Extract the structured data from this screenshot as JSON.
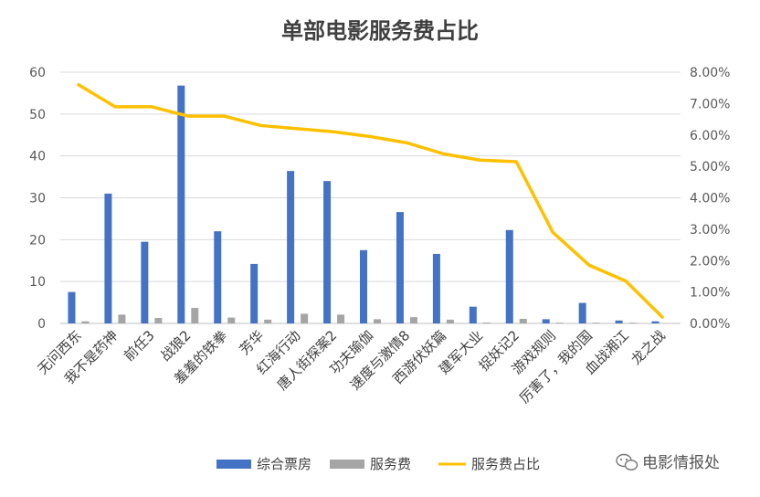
{
  "chart_data": {
    "type": "bar",
    "title": "单部电影服务费占比",
    "categories": [
      "无问西东",
      "我不是药神",
      "前任3",
      "战狼2",
      "羞羞的铁拳",
      "芳华",
      "红海行动",
      "唐人街探案2",
      "功夫瑜伽",
      "速度与激情8",
      "西游伏妖篇",
      "建军大业",
      "捉妖记2",
      "游戏规则",
      "厉害了，我的国",
      "血战湘江",
      "龙之战"
    ],
    "series": [
      {
        "name": "综合票房",
        "axis": "left",
        "kind": "bar",
        "color": "#4472C4",
        "values": [
          7.5,
          31,
          19.5,
          56.8,
          22,
          14.2,
          36.4,
          34,
          17.5,
          26.6,
          16.6,
          4,
          22.3,
          1,
          4.9,
          0.7,
          0.5
        ]
      },
      {
        "name": "服务费",
        "axis": "left",
        "kind": "bar",
        "color": "#A5A5A5",
        "values": [
          0.5,
          2.1,
          1.3,
          3.7,
          1.4,
          0.9,
          2.3,
          2.1,
          1,
          1.5,
          0.9,
          0.2,
          1.1,
          0.1,
          0.1,
          0.1,
          0
        ]
      },
      {
        "name": "服务费占比",
        "axis": "right",
        "kind": "line",
        "color": "#FFC000",
        "values": [
          7.6,
          6.9,
          6.9,
          6.6,
          6.6,
          6.3,
          6.2,
          6.1,
          5.95,
          5.75,
          5.4,
          5.2,
          5.15,
          2.9,
          1.85,
          1.35,
          0.2
        ]
      }
    ],
    "y_left": {
      "min": 0,
      "max": 60,
      "step": 10,
      "tick_labels": [
        "0",
        "10",
        "20",
        "30",
        "40",
        "50",
        "60"
      ]
    },
    "y_right": {
      "min": 0,
      "max": 8,
      "step": 1,
      "tick_labels": [
        "0.00%",
        "1.00%",
        "2.00%",
        "3.00%",
        "4.00%",
        "5.00%",
        "6.00%",
        "7.00%",
        "8.00%"
      ]
    },
    "grid": true,
    "legend": {
      "position": "bottom",
      "items": [
        {
          "label": "综合票房",
          "color": "#4472C4",
          "shape": "box"
        },
        {
          "label": "服务费",
          "color": "#A5A5A5",
          "shape": "box"
        },
        {
          "label": "服务费占比",
          "color": "#FFC000",
          "shape": "line"
        }
      ]
    }
  },
  "watermark": {
    "text": "电影情报处",
    "icon": "wechat-icon"
  }
}
